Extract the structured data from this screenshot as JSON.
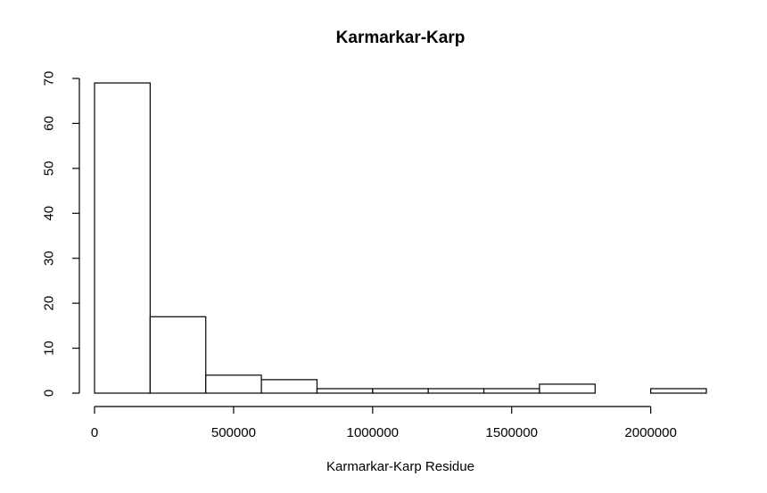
{
  "chart_data": {
    "type": "bar",
    "title": "Karmarkar-Karp",
    "xlabel": "Karmarkar-Karp Residue",
    "ylabel": "",
    "xlim": [
      0,
      2200000
    ],
    "ylim": [
      0,
      70
    ],
    "bins": [
      {
        "x0": 0,
        "x1": 200000,
        "count": 69
      },
      {
        "x0": 200000,
        "x1": 400000,
        "count": 17
      },
      {
        "x0": 400000,
        "x1": 600000,
        "count": 4
      },
      {
        "x0": 600000,
        "x1": 800000,
        "count": 3
      },
      {
        "x0": 800000,
        "x1": 1000000,
        "count": 1
      },
      {
        "x0": 1000000,
        "x1": 1200000,
        "count": 1
      },
      {
        "x0": 1200000,
        "x1": 1400000,
        "count": 1
      },
      {
        "x0": 1400000,
        "x1": 1600000,
        "count": 1
      },
      {
        "x0": 1600000,
        "x1": 1800000,
        "count": 2
      },
      {
        "x0": 1800000,
        "x1": 2000000,
        "count": 0
      },
      {
        "x0": 2000000,
        "x1": 2200000,
        "count": 1
      }
    ],
    "x_ticks": [
      0,
      500000,
      1000000,
      1500000,
      2000000
    ],
    "x_tick_labels": [
      "0",
      "500000",
      "1000000",
      "1500000",
      "2000000"
    ],
    "y_ticks": [
      0,
      10,
      20,
      30,
      40,
      50,
      60,
      70
    ],
    "y_tick_labels": [
      "0",
      "10",
      "20",
      "30",
      "40",
      "50",
      "60",
      "70"
    ],
    "grid": false
  }
}
